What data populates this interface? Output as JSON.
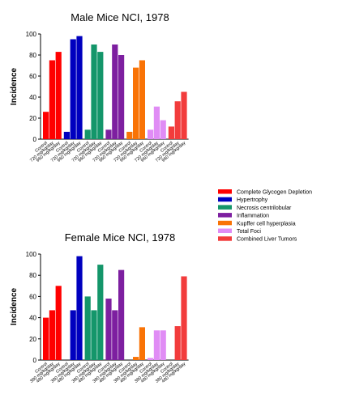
{
  "chart_data": [
    {
      "type": "bar",
      "title": "Male Mice NCI, 1978",
      "ylabel": "Incidence",
      "xlabel": "",
      "ylim": [
        0,
        100
      ],
      "yticks": [
        0,
        20,
        40,
        60,
        80,
        100
      ],
      "grid": false,
      "groups": [
        {
          "series": "Complete Glycogen Depletion",
          "color": "#ff0000",
          "categories": [
            "Control",
            "720 mg/kg/day",
            "960 mg/kg/day"
          ],
          "values": [
            26,
            75,
            83
          ]
        },
        {
          "series": "Hypertrophy",
          "color": "#0000bf",
          "categories": [
            "Control",
            "720 mg/kg/day",
            "960 mg/kg/day"
          ],
          "values": [
            7,
            95,
            98
          ]
        },
        {
          "series": "Necrosis centrilobular",
          "color": "#14966a",
          "categories": [
            "Control",
            "720 mg/kg/day",
            "960 mg/kg/day"
          ],
          "values": [
            9,
            90,
            83
          ]
        },
        {
          "series": "Inflammation",
          "color": "#7d1fa0",
          "categories": [
            "Control",
            "720 mg/kg/day",
            "960 mg/kg/day"
          ],
          "values": [
            9,
            90,
            80
          ]
        },
        {
          "series": "Kupffer cell hyperplasia",
          "color": "#f97306",
          "categories": [
            "Control",
            "720 mg/kg/day",
            "960 mg/kg/day"
          ],
          "values": [
            7,
            68,
            75
          ]
        },
        {
          "series": "Total Foci",
          "color": "#e08cf5",
          "categories": [
            "Control",
            "720 mg/kg/day",
            "960 mg/kg/day"
          ],
          "values": [
            9,
            31,
            18
          ]
        },
        {
          "series": "Combined Liver Tumors",
          "color": "#f23c3c",
          "categories": [
            "Control",
            "720 mg/kg/day",
            "960 mg/kg/day"
          ],
          "values": [
            12,
            36,
            45
          ]
        }
      ]
    },
    {
      "type": "bar",
      "title": "Female Mice NCI, 1978",
      "ylabel": "Incidence",
      "xlabel": "",
      "ylim": [
        0,
        100
      ],
      "yticks": [
        0,
        20,
        40,
        60,
        80,
        100
      ],
      "grid": false,
      "groups": [
        {
          "series": "Complete Glycogen Depletion",
          "color": "#ff0000",
          "categories": [
            "Control",
            "380 mg/kg/day",
            "480 mg/kg/day"
          ],
          "values": [
            40,
            47,
            70
          ]
        },
        {
          "series": "Hypertrophy",
          "color": "#0000bf",
          "categories": [
            "Control",
            "380 mg/kg/day",
            "480 mg/kg/day"
          ],
          "values": [
            0,
            47,
            98
          ]
        },
        {
          "series": "Necrosis centrilobular",
          "color": "#14966a",
          "categories": [
            "Control",
            "380 mg/kg/day",
            "480 mg/kg/day"
          ],
          "values": [
            60,
            47,
            90
          ]
        },
        {
          "series": "Inflammation",
          "color": "#7d1fa0",
          "categories": [
            "Control",
            "380 mg/kg/day",
            "480 mg/kg/day"
          ],
          "values": [
            58,
            47,
            85
          ]
        },
        {
          "series": "Kupffer cell hyperplasia",
          "color": "#f97306",
          "categories": [
            "Control",
            "380 mg/kg/day",
            "480 mg/kg/day"
          ],
          "values": [
            0,
            3,
            31
          ]
        },
        {
          "series": "Total Foci",
          "color": "#e08cf5",
          "categories": [
            "Control",
            "380 mg/kg/day",
            "480 mg/kg/day"
          ],
          "values": [
            2,
            28,
            28
          ]
        },
        {
          "series": "Combined Liver Tumors",
          "color": "#f23c3c",
          "categories": [
            "Control",
            "380 mg/kg/day",
            "480 mg/kg/day"
          ],
          "values": [
            0,
            32,
            79
          ]
        }
      ]
    }
  ],
  "legend": {
    "placement": "right",
    "items": [
      {
        "label": "Complete Glycogen Depletion",
        "color": "#ff0000"
      },
      {
        "label": "Hypertrophy",
        "color": "#0000bf"
      },
      {
        "label": "Necrosis centrilobular",
        "color": "#14966a"
      },
      {
        "label": "Inflammation",
        "color": "#7d1fa0"
      },
      {
        "label": "Kupffer cell hyperplasia",
        "color": "#f97306"
      },
      {
        "label": "Total Foci",
        "color": "#e08cf5"
      },
      {
        "label": "Combined Liver Tumors",
        "color": "#f23c3c"
      }
    ]
  }
}
